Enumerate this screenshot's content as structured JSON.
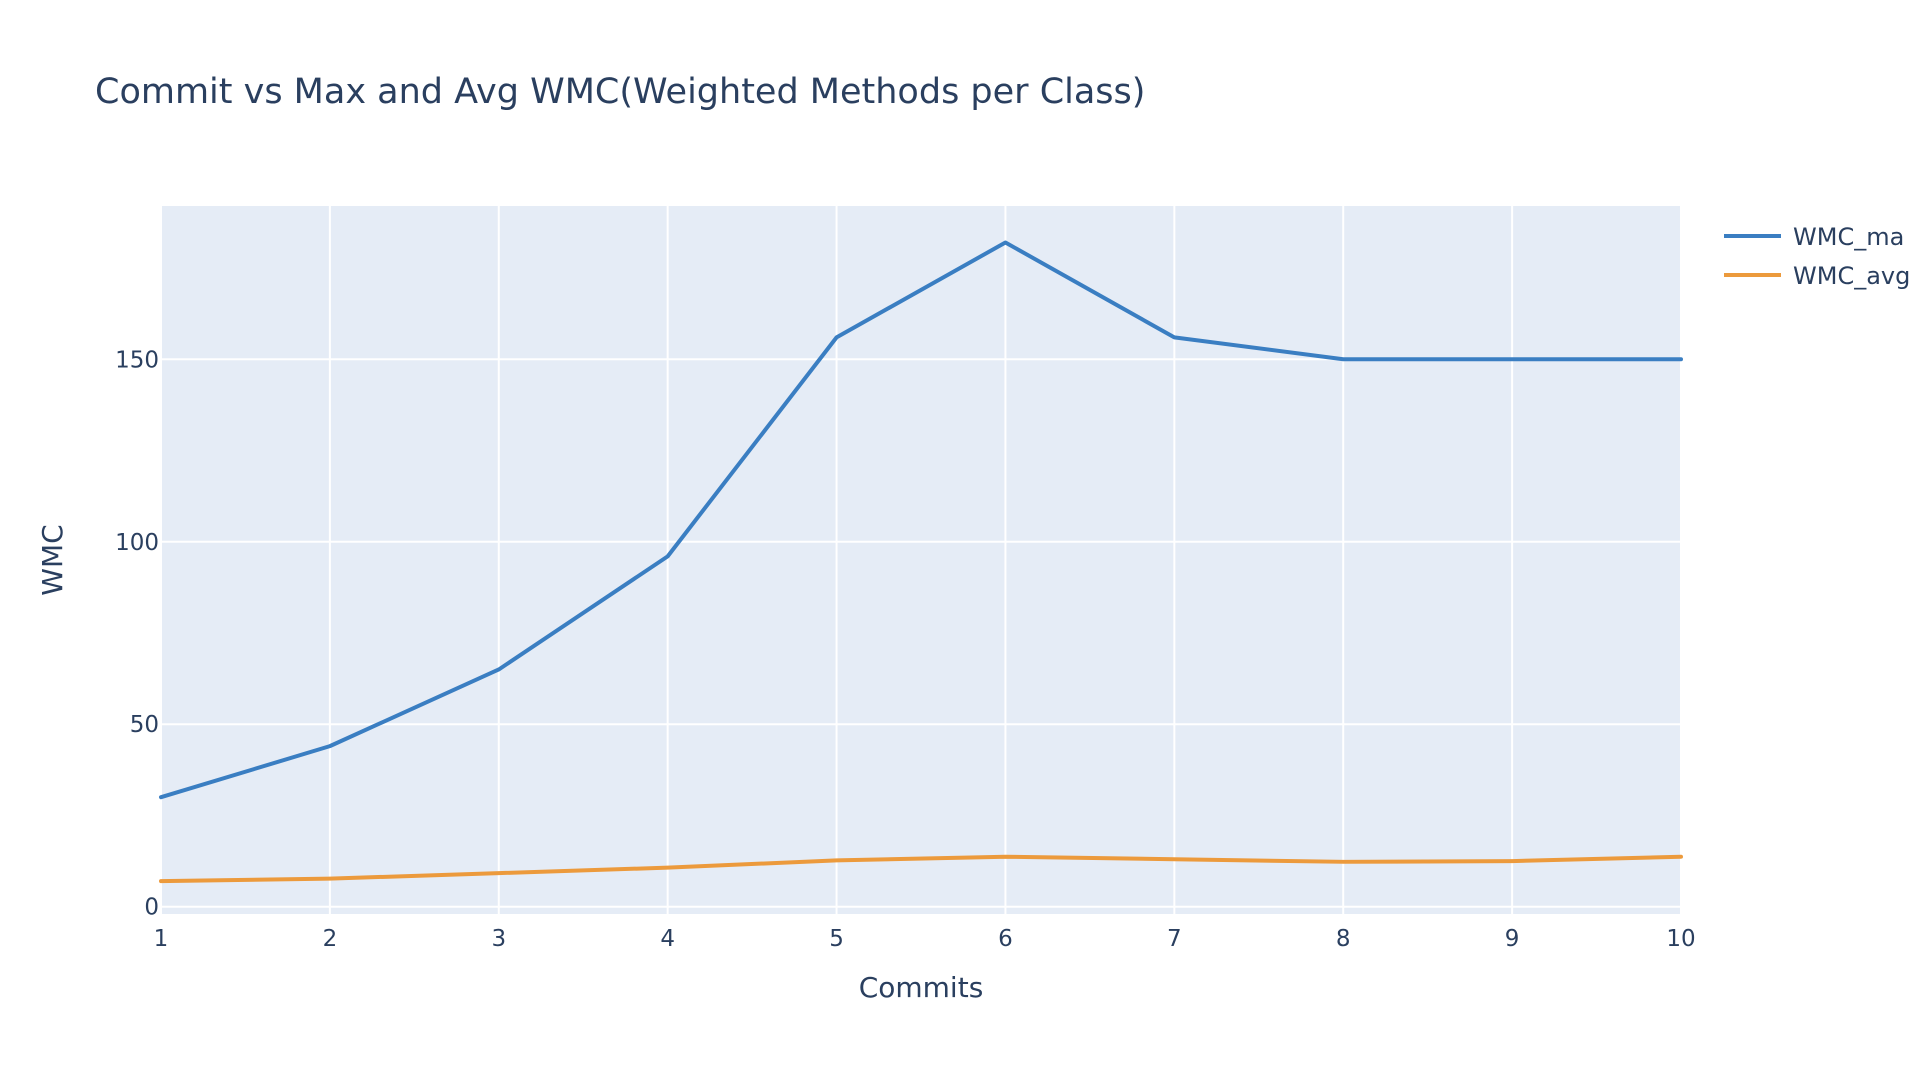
{
  "chart_data": {
    "type": "line",
    "title": "Commit vs Max and Avg WMC(Weighted Methods per Class)",
    "xlabel": "Commits",
    "ylabel": "WMC",
    "x": [
      1,
      2,
      3,
      4,
      5,
      6,
      7,
      8,
      9,
      10
    ],
    "xlim": [
      1,
      10
    ],
    "ylim": [
      -2,
      192
    ],
    "x_ticks": [
      "1",
      "2",
      "3",
      "4",
      "5",
      "6",
      "7",
      "8",
      "9",
      "10"
    ],
    "y_ticks": [
      "0",
      "50",
      "100",
      "150"
    ],
    "grid": true,
    "legend_position": "top-right",
    "series": [
      {
        "name": "WMC_max",
        "legend_label": "WMC_ma",
        "color": "#3a7ec2",
        "values": [
          30,
          44,
          65,
          96,
          156,
          182,
          156,
          150,
          150,
          150
        ]
      },
      {
        "name": "WMC_avg",
        "legend_label": "WMC_avg",
        "color": "#ec9a3c",
        "values": [
          7,
          7.7,
          9.2,
          10.7,
          12.7,
          13.7,
          13,
          12.3,
          12.5,
          13.7
        ]
      }
    ]
  }
}
